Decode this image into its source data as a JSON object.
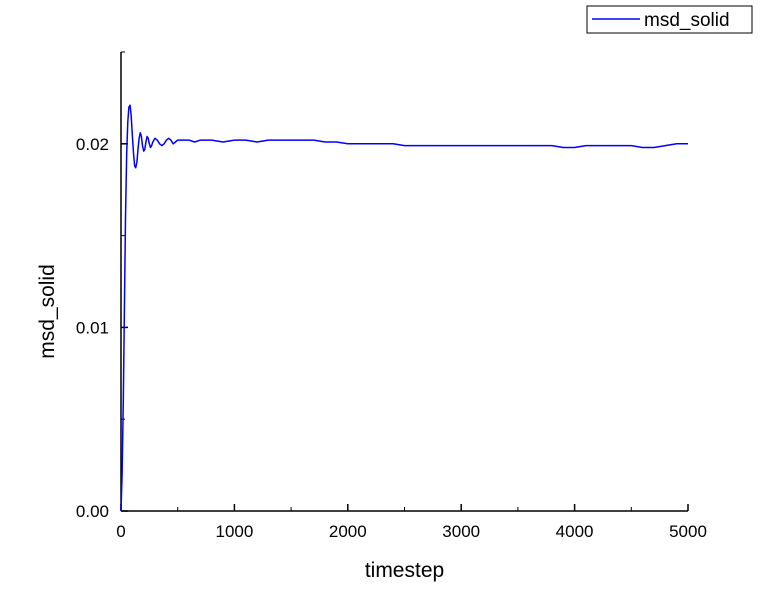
{
  "chart_data": {
    "type": "line",
    "title": "",
    "xlabel": "timestep",
    "ylabel": "msd_solid",
    "xlim": [
      0,
      5000
    ],
    "ylim": [
      0,
      0.025
    ],
    "x_ticks": [
      0,
      1000,
      2000,
      3000,
      4000,
      5000
    ],
    "x_tick_labels": [
      "0",
      "1000",
      "2000",
      "3000",
      "4000",
      "5000"
    ],
    "y_ticks": [
      0,
      0.01,
      0.02
    ],
    "y_tick_labels": [
      "0.00",
      "0.01",
      "0.02"
    ],
    "grid": false,
    "legend_position": "top-right",
    "series": [
      {
        "name": "msd_solid",
        "color": "#0000ff",
        "x": [
          0,
          10,
          20,
          30,
          40,
          50,
          60,
          70,
          80,
          90,
          100,
          110,
          120,
          130,
          140,
          150,
          160,
          170,
          180,
          190,
          200,
          210,
          220,
          230,
          240,
          250,
          260,
          270,
          280,
          300,
          320,
          340,
          360,
          380,
          400,
          420,
          440,
          460,
          480,
          500,
          550,
          600,
          650,
          700,
          800,
          900,
          1000,
          1100,
          1200,
          1300,
          1400,
          1500,
          1600,
          1700,
          1800,
          1900,
          2000,
          2100,
          2200,
          2300,
          2400,
          2500,
          2600,
          2700,
          2800,
          2900,
          3000,
          3100,
          3200,
          3300,
          3400,
          3500,
          3600,
          3700,
          3800,
          3900,
          4000,
          4100,
          4200,
          4300,
          4400,
          4500,
          4600,
          4700,
          4800,
          4900,
          5000
        ],
        "values": [
          0.0,
          0.002,
          0.006,
          0.011,
          0.016,
          0.0195,
          0.0212,
          0.022,
          0.0221,
          0.0215,
          0.0205,
          0.0195,
          0.0188,
          0.0187,
          0.019,
          0.0197,
          0.0203,
          0.0206,
          0.0204,
          0.0199,
          0.0196,
          0.0197,
          0.0201,
          0.0204,
          0.0203,
          0.02,
          0.0198,
          0.0199,
          0.0201,
          0.0203,
          0.0202,
          0.02,
          0.0199,
          0.02,
          0.0202,
          0.0203,
          0.0202,
          0.02,
          0.0201,
          0.0202,
          0.0202,
          0.0202,
          0.0201,
          0.0202,
          0.0202,
          0.0201,
          0.0202,
          0.0202,
          0.0201,
          0.0202,
          0.0202,
          0.0202,
          0.0202,
          0.0202,
          0.0201,
          0.0201,
          0.02,
          0.02,
          0.02,
          0.02,
          0.02,
          0.0199,
          0.0199,
          0.0199,
          0.0199,
          0.0199,
          0.0199,
          0.0199,
          0.0199,
          0.0199,
          0.0199,
          0.0199,
          0.0199,
          0.0199,
          0.0199,
          0.0198,
          0.0198,
          0.0199,
          0.0199,
          0.0199,
          0.0199,
          0.0199,
          0.0198,
          0.0198,
          0.0199,
          0.02,
          0.02
        ]
      }
    ]
  }
}
